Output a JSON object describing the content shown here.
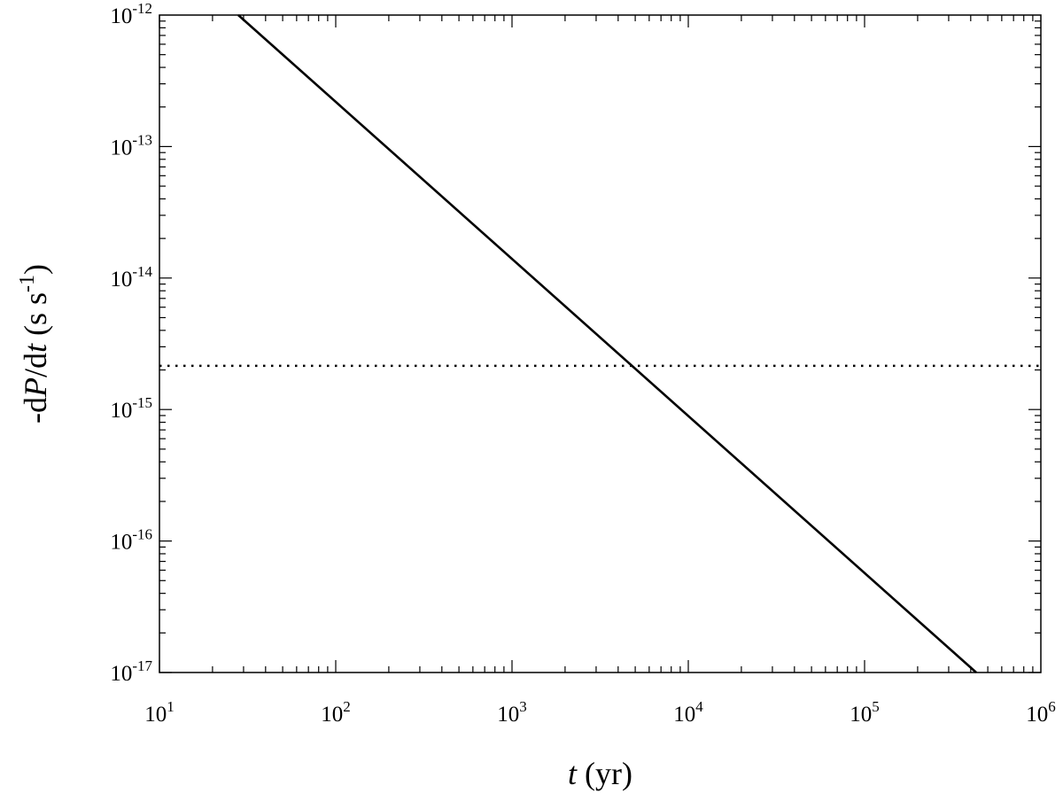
{
  "chart_data": {
    "type": "line",
    "title": "",
    "x_scale": "log",
    "y_scale": "log",
    "xlim": [
      10,
      1000000
    ],
    "ylim": [
      1e-17,
      1e-12
    ],
    "xlabel": {
      "var": "t",
      "unit": " (yr)"
    },
    "ylabel": {
      "prefix": "-d",
      "var1": "P",
      "mid": "/d",
      "var2": "t",
      "unit_open": " (s s",
      "unit_exp": "-1",
      "unit_close": ")"
    },
    "x_ticks": [
      {
        "base": "10",
        "exp": "1",
        "value": 10
      },
      {
        "base": "10",
        "exp": "2",
        "value": 100
      },
      {
        "base": "10",
        "exp": "3",
        "value": 1000
      },
      {
        "base": "10",
        "exp": "4",
        "value": 10000
      },
      {
        "base": "10",
        "exp": "5",
        "value": 100000
      },
      {
        "base": "10",
        "exp": "6",
        "value": 1000000
      }
    ],
    "y_ticks": [
      {
        "base": "10",
        "exp": "-12",
        "value": 1e-12
      },
      {
        "base": "10",
        "exp": "-13",
        "value": 1e-13
      },
      {
        "base": "10",
        "exp": "-14",
        "value": 1e-14
      },
      {
        "base": "10",
        "exp": "-15",
        "value": 1e-15
      },
      {
        "base": "10",
        "exp": "-16",
        "value": 1e-16
      },
      {
        "base": "10",
        "exp": "-17",
        "value": 1e-17
      }
    ],
    "series": [
      {
        "style": "solid",
        "color": "#000000",
        "x": [
          28,
          430000
        ],
        "y": [
          1e-12,
          1e-17
        ]
      },
      {
        "style": "dotted",
        "color": "#000000",
        "x": [
          10,
          1000000
        ],
        "y": [
          2.15e-15,
          2.15e-15
        ]
      }
    ],
    "grid": false,
    "legend": "none"
  }
}
